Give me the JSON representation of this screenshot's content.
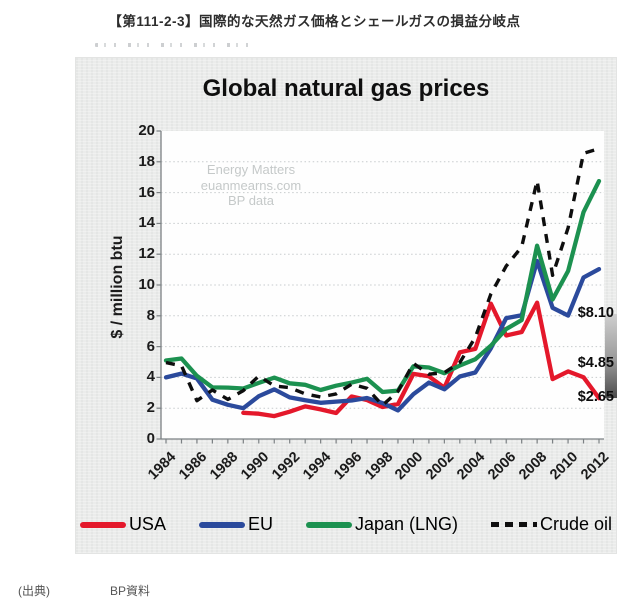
{
  "page": {
    "title": "【第111-2-3】国際的な天然ガス価格とシェールガスの損益分岐点",
    "source_label": "(出典)",
    "source_value": "BP資料"
  },
  "chart": {
    "title": "Global natural gas prices",
    "ylabel": "$ / million btu",
    "watermark": {
      "line1": "Energy Matters",
      "line2": "euanmearns.com",
      "line3": "BP data"
    },
    "annotations": [
      {
        "label": "$8.10",
        "value": 8.1
      },
      {
        "label": "$4.85",
        "value": 4.85
      },
      {
        "label": "$2.65",
        "value": 2.65
      }
    ],
    "breakeven_bar": {
      "from": 2.65,
      "to": 8.1
    }
  },
  "chart_data": {
    "type": "line",
    "title": "Global natural gas prices",
    "xlabel": "",
    "ylabel": "$ / million btu",
    "ylim": [
      0,
      20
    ],
    "grid": "horizontal-dotted",
    "legend_position": "bottom",
    "x": [
      1984,
      1985,
      1986,
      1987,
      1988,
      1989,
      1990,
      1991,
      1992,
      1993,
      1994,
      1995,
      1996,
      1997,
      1998,
      1999,
      2000,
      2001,
      2002,
      2003,
      2004,
      2005,
      2006,
      2007,
      2008,
      2009,
      2010,
      2011,
      2012
    ],
    "xtick_labels": [
      "1984",
      "1986",
      "1988",
      "1990",
      "1992",
      "1994",
      "1996",
      "1998",
      "2000",
      "2002",
      "2004",
      "2006",
      "2008",
      "2010",
      "2012"
    ],
    "ytick_labels": [
      "0",
      "2",
      "4",
      "6",
      "8",
      "10",
      "12",
      "14",
      "16",
      "18",
      "20"
    ],
    "series": [
      {
        "name": "USA",
        "color": "#e4182b",
        "style": "solid",
        "values": [
          null,
          null,
          null,
          null,
          null,
          1.7,
          1.64,
          1.49,
          1.77,
          2.12,
          1.92,
          1.69,
          2.76,
          2.53,
          2.08,
          2.27,
          4.23,
          4.07,
          3.33,
          5.63,
          5.85,
          8.79,
          6.72,
          6.95,
          8.85,
          3.89,
          4.39,
          4.01,
          2.65
        ]
      },
      {
        "name": "EU",
        "color": "#2b4a9c",
        "style": "solid",
        "values": [
          4.0,
          4.25,
          3.93,
          2.55,
          2.22,
          2.0,
          2.78,
          3.22,
          2.7,
          2.51,
          2.35,
          2.43,
          2.5,
          2.66,
          2.33,
          1.86,
          2.91,
          3.66,
          3.23,
          4.06,
          4.32,
          5.88,
          7.85,
          8.03,
          11.56,
          8.52,
          8.01,
          10.49,
          11.03
        ]
      },
      {
        "name": "Japan (LNG)",
        "color": "#1c9150",
        "style": "solid",
        "values": [
          5.1,
          5.23,
          4.1,
          3.35,
          3.34,
          3.28,
          3.64,
          3.99,
          3.62,
          3.52,
          3.18,
          3.46,
          3.66,
          3.91,
          3.05,
          3.14,
          4.72,
          4.64,
          4.27,
          4.77,
          5.18,
          6.05,
          7.14,
          7.73,
          12.55,
          9.06,
          10.91,
          14.73,
          16.75
        ]
      },
      {
        "name": "Crude oil",
        "color": "#0e0e0e",
        "style": "dashed",
        "values": [
          4.96,
          4.75,
          2.49,
          3.18,
          2.57,
          3.14,
          4.09,
          3.45,
          3.33,
          2.93,
          2.73,
          2.93,
          3.56,
          3.29,
          2.19,
          3.1,
          4.91,
          4.21,
          4.31,
          4.97,
          6.6,
          9.4,
          11.23,
          12.48,
          16.77,
          10.63,
          13.71,
          18.55,
          18.85
        ]
      }
    ]
  }
}
